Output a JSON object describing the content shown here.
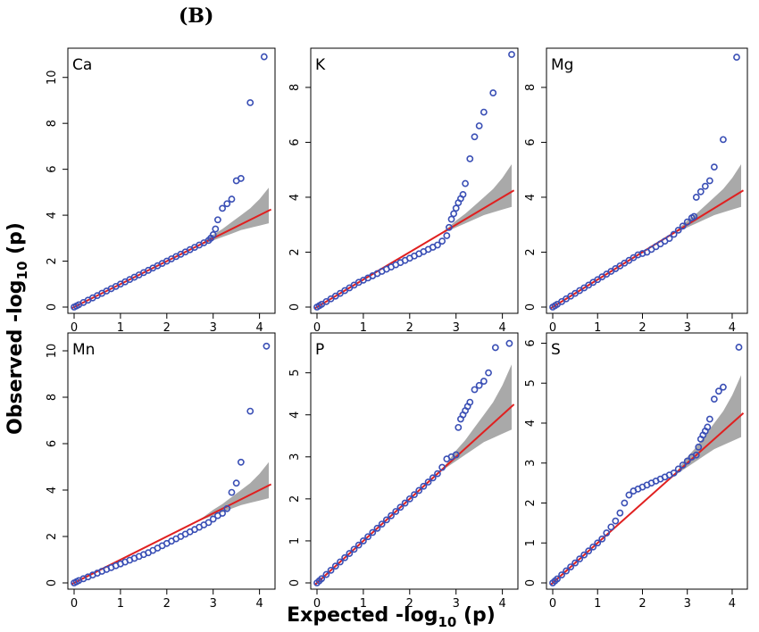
{
  "figure": {
    "panel_label": "(B)",
    "xlabel_main": "Expected -log",
    "xlabel_sub": "10",
    "xlabel_tail": " (p)",
    "ylabel_main": "Observed -log",
    "ylabel_sub": "10",
    "ylabel_tail": " (p)"
  },
  "colors": {
    "points": "#3a4fb5",
    "reference_line": "#e02020",
    "confidence_band": "#a9a9a9",
    "frame": "#000000"
  },
  "chart_data": [
    {
      "type": "scatter",
      "title": "Ca",
      "xlim": [
        0,
        4.2
      ],
      "ylim": [
        0,
        11
      ],
      "xticks": [
        0,
        1,
        2,
        3,
        4
      ],
      "yticks": [
        0,
        2,
        4,
        6,
        8,
        10
      ],
      "reference_line": {
        "x": [
          -0.05,
          4.25
        ],
        "y": [
          -0.05,
          4.25
        ]
      },
      "confidence_band": {
        "x": [
          2.6,
          2.8,
          3.0,
          3.2,
          3.4,
          3.6,
          3.8,
          4.0,
          4.2
        ],
        "lower": [
          2.6,
          2.75,
          2.9,
          3.05,
          3.2,
          3.35,
          3.45,
          3.55,
          3.65
        ],
        "upper": [
          2.6,
          2.85,
          3.15,
          3.4,
          3.7,
          4.0,
          4.3,
          4.7,
          5.2
        ]
      },
      "points": {
        "x": [
          0.0,
          0.05,
          0.1,
          0.2,
          0.3,
          0.4,
          0.5,
          0.6,
          0.7,
          0.8,
          0.9,
          1.0,
          1.1,
          1.2,
          1.3,
          1.4,
          1.5,
          1.6,
          1.7,
          1.8,
          1.9,
          2.0,
          2.1,
          2.2,
          2.3,
          2.4,
          2.5,
          2.6,
          2.7,
          2.8,
          2.9,
          2.95,
          3.0,
          3.05,
          3.1,
          3.2,
          3.3,
          3.4,
          3.5,
          3.6,
          3.8,
          4.1
        ],
        "y": [
          0.0,
          0.05,
          0.1,
          0.2,
          0.3,
          0.4,
          0.5,
          0.6,
          0.7,
          0.8,
          0.9,
          1.0,
          1.1,
          1.2,
          1.3,
          1.4,
          1.5,
          1.6,
          1.7,
          1.8,
          1.9,
          2.0,
          2.1,
          2.2,
          2.3,
          2.4,
          2.5,
          2.6,
          2.7,
          2.8,
          2.9,
          3.0,
          3.15,
          3.4,
          3.8,
          4.3,
          4.5,
          4.7,
          5.5,
          5.6,
          8.9,
          10.9
        ]
      }
    },
    {
      "type": "scatter",
      "title": "K",
      "xlim": [
        0,
        4.2
      ],
      "ylim": [
        0,
        9.2
      ],
      "xticks": [
        0,
        1,
        2,
        3,
        4
      ],
      "yticks": [
        0,
        2,
        4,
        6,
        8
      ],
      "reference_line": {
        "x": [
          -0.05,
          4.25
        ],
        "y": [
          -0.05,
          4.25
        ]
      },
      "confidence_band": {
        "x": [
          2.6,
          2.8,
          3.0,
          3.2,
          3.4,
          3.6,
          3.8,
          4.0,
          4.2
        ],
        "lower": [
          2.6,
          2.75,
          2.9,
          3.05,
          3.2,
          3.35,
          3.45,
          3.55,
          3.65
        ],
        "upper": [
          2.6,
          2.85,
          3.15,
          3.4,
          3.7,
          4.0,
          4.3,
          4.7,
          5.2
        ]
      },
      "points": {
        "x": [
          0.0,
          0.05,
          0.1,
          0.2,
          0.3,
          0.4,
          0.5,
          0.6,
          0.7,
          0.8,
          0.9,
          1.0,
          1.1,
          1.2,
          1.3,
          1.4,
          1.5,
          1.6,
          1.7,
          1.8,
          1.9,
          2.0,
          2.1,
          2.2,
          2.3,
          2.4,
          2.5,
          2.6,
          2.7,
          2.8,
          2.85,
          2.9,
          2.95,
          3.0,
          3.05,
          3.1,
          3.15,
          3.2,
          3.3,
          3.4,
          3.5,
          3.6,
          3.8,
          4.2
        ],
        "y": [
          0.0,
          0.05,
          0.1,
          0.2,
          0.3,
          0.4,
          0.5,
          0.6,
          0.7,
          0.8,
          0.9,
          0.98,
          1.06,
          1.14,
          1.22,
          1.3,
          1.38,
          1.46,
          1.54,
          1.62,
          1.7,
          1.78,
          1.86,
          1.94,
          2.02,
          2.1,
          2.18,
          2.26,
          2.4,
          2.6,
          2.9,
          3.2,
          3.4,
          3.6,
          3.8,
          3.95,
          4.1,
          4.5,
          5.4,
          6.2,
          6.6,
          7.1,
          7.8,
          9.2
        ]
      }
    },
    {
      "type": "scatter",
      "title": "Mg",
      "xlim": [
        0,
        4.2
      ],
      "ylim": [
        0,
        9.2
      ],
      "xticks": [
        0,
        1,
        2,
        3,
        4
      ],
      "yticks": [
        0,
        2,
        4,
        6,
        8
      ],
      "reference_line": {
        "x": [
          -0.05,
          4.25
        ],
        "y": [
          -0.05,
          4.25
        ]
      },
      "confidence_band": {
        "x": [
          2.6,
          2.8,
          3.0,
          3.2,
          3.4,
          3.6,
          3.8,
          4.0,
          4.2
        ],
        "lower": [
          2.6,
          2.75,
          2.9,
          3.05,
          3.2,
          3.35,
          3.45,
          3.55,
          3.65
        ],
        "upper": [
          2.6,
          2.85,
          3.15,
          3.4,
          3.7,
          4.0,
          4.3,
          4.7,
          5.2
        ]
      },
      "points": {
        "x": [
          0.0,
          0.05,
          0.1,
          0.2,
          0.3,
          0.4,
          0.5,
          0.6,
          0.7,
          0.8,
          0.9,
          1.0,
          1.1,
          1.2,
          1.3,
          1.4,
          1.5,
          1.6,
          1.7,
          1.8,
          1.9,
          2.0,
          2.1,
          2.2,
          2.3,
          2.4,
          2.5,
          2.6,
          2.7,
          2.8,
          2.9,
          3.0,
          3.1,
          3.15,
          3.2,
          3.3,
          3.4,
          3.5,
          3.6,
          3.8,
          4.1
        ],
        "y": [
          0.0,
          0.05,
          0.1,
          0.2,
          0.3,
          0.4,
          0.5,
          0.6,
          0.7,
          0.8,
          0.9,
          1.0,
          1.1,
          1.2,
          1.3,
          1.4,
          1.5,
          1.6,
          1.7,
          1.8,
          1.9,
          1.95,
          2.0,
          2.1,
          2.2,
          2.3,
          2.4,
          2.5,
          2.65,
          2.8,
          2.95,
          3.1,
          3.25,
          3.3,
          4.0,
          4.2,
          4.4,
          4.6,
          5.1,
          6.1,
          9.1
        ]
      }
    },
    {
      "type": "scatter",
      "title": "Mn",
      "xlim": [
        0,
        4.2
      ],
      "ylim": [
        0,
        10.5
      ],
      "xticks": [
        0,
        1,
        2,
        3,
        4
      ],
      "yticks": [
        0,
        2,
        4,
        6,
        8,
        10
      ],
      "reference_line": {
        "x": [
          -0.05,
          4.25
        ],
        "y": [
          -0.05,
          4.25
        ]
      },
      "confidence_band": {
        "x": [
          2.6,
          2.8,
          3.0,
          3.2,
          3.4,
          3.6,
          3.8,
          4.0,
          4.2
        ],
        "lower": [
          2.6,
          2.75,
          2.9,
          3.05,
          3.2,
          3.35,
          3.45,
          3.55,
          3.65
        ],
        "upper": [
          2.6,
          2.85,
          3.15,
          3.4,
          3.7,
          4.0,
          4.3,
          4.7,
          5.2
        ]
      },
      "points": {
        "x": [
          0.0,
          0.05,
          0.1,
          0.2,
          0.3,
          0.4,
          0.5,
          0.6,
          0.7,
          0.8,
          0.9,
          1.0,
          1.1,
          1.2,
          1.3,
          1.4,
          1.5,
          1.6,
          1.7,
          1.8,
          1.9,
          2.0,
          2.1,
          2.2,
          2.3,
          2.4,
          2.5,
          2.6,
          2.7,
          2.8,
          2.9,
          3.0,
          3.1,
          3.2,
          3.3,
          3.4,
          3.5,
          3.6,
          3.8,
          4.15
        ],
        "y": [
          0.0,
          0.05,
          0.1,
          0.18,
          0.26,
          0.34,
          0.42,
          0.5,
          0.58,
          0.66,
          0.74,
          0.82,
          0.9,
          0.98,
          1.06,
          1.14,
          1.22,
          1.3,
          1.4,
          1.5,
          1.6,
          1.7,
          1.8,
          1.9,
          2.0,
          2.1,
          2.2,
          2.3,
          2.4,
          2.5,
          2.6,
          2.75,
          2.9,
          3.0,
          3.2,
          3.9,
          4.3,
          5.2,
          7.4,
          10.2
        ]
      }
    },
    {
      "type": "scatter",
      "title": "P",
      "xlim": [
        0,
        4.2
      ],
      "ylim": [
        0,
        5.8
      ],
      "xticks": [
        0,
        1,
        2,
        3,
        4
      ],
      "yticks": [
        0,
        1,
        2,
        3,
        4,
        5
      ],
      "reference_line": {
        "x": [
          -0.05,
          4.25
        ],
        "y": [
          -0.05,
          4.25
        ]
      },
      "confidence_band": {
        "x": [
          2.6,
          2.8,
          3.0,
          3.2,
          3.4,
          3.6,
          3.8,
          4.0,
          4.2
        ],
        "lower": [
          2.6,
          2.75,
          2.9,
          3.05,
          3.2,
          3.35,
          3.45,
          3.55,
          3.65
        ],
        "upper": [
          2.6,
          2.85,
          3.15,
          3.4,
          3.7,
          4.0,
          4.3,
          4.7,
          5.2
        ]
      },
      "points": {
        "x": [
          0.0,
          0.05,
          0.1,
          0.2,
          0.3,
          0.4,
          0.5,
          0.6,
          0.7,
          0.8,
          0.9,
          1.0,
          1.1,
          1.2,
          1.3,
          1.4,
          1.5,
          1.6,
          1.7,
          1.8,
          1.9,
          2.0,
          2.1,
          2.2,
          2.3,
          2.4,
          2.5,
          2.6,
          2.7,
          2.8,
          2.9,
          3.0,
          3.05,
          3.1,
          3.15,
          3.2,
          3.25,
          3.3,
          3.4,
          3.5,
          3.6,
          3.7,
          3.85,
          4.15
        ],
        "y": [
          0.0,
          0.05,
          0.1,
          0.2,
          0.3,
          0.4,
          0.5,
          0.6,
          0.7,
          0.8,
          0.9,
          1.0,
          1.1,
          1.2,
          1.3,
          1.4,
          1.5,
          1.6,
          1.7,
          1.8,
          1.9,
          2.0,
          2.1,
          2.2,
          2.3,
          2.4,
          2.5,
          2.6,
          2.75,
          2.95,
          3.0,
          3.05,
          3.7,
          3.9,
          4.0,
          4.1,
          4.2,
          4.3,
          4.6,
          4.7,
          4.8,
          5.0,
          5.6,
          5.7
        ]
      }
    },
    {
      "type": "scatter",
      "title": "S",
      "xlim": [
        0,
        4.2
      ],
      "ylim": [
        0,
        6.1
      ],
      "xticks": [
        0,
        1,
        2,
        3,
        4
      ],
      "yticks": [
        0,
        1,
        2,
        3,
        4,
        5,
        6
      ],
      "reference_line": {
        "x": [
          -0.05,
          4.25
        ],
        "y": [
          -0.05,
          4.25
        ]
      },
      "confidence_band": {
        "x": [
          2.6,
          2.8,
          3.0,
          3.2,
          3.4,
          3.6,
          3.8,
          4.0,
          4.2
        ],
        "lower": [
          2.6,
          2.75,
          2.9,
          3.05,
          3.2,
          3.35,
          3.45,
          3.55,
          3.65
        ],
        "upper": [
          2.6,
          2.85,
          3.15,
          3.4,
          3.7,
          4.0,
          4.3,
          4.7,
          5.2
        ]
      },
      "points": {
        "x": [
          0.0,
          0.05,
          0.1,
          0.2,
          0.3,
          0.4,
          0.5,
          0.6,
          0.7,
          0.8,
          0.9,
          1.0,
          1.1,
          1.2,
          1.3,
          1.4,
          1.5,
          1.6,
          1.7,
          1.8,
          1.9,
          2.0,
          2.1,
          2.2,
          2.3,
          2.4,
          2.5,
          2.6,
          2.7,
          2.8,
          2.9,
          3.0,
          3.1,
          3.2,
          3.25,
          3.3,
          3.35,
          3.4,
          3.45,
          3.5,
          3.6,
          3.7,
          3.8,
          4.15
        ],
        "y": [
          0.0,
          0.05,
          0.1,
          0.2,
          0.3,
          0.4,
          0.5,
          0.6,
          0.7,
          0.8,
          0.9,
          1.0,
          1.1,
          1.25,
          1.4,
          1.55,
          1.75,
          2.0,
          2.2,
          2.3,
          2.35,
          2.4,
          2.45,
          2.5,
          2.55,
          2.6,
          2.65,
          2.7,
          2.75,
          2.85,
          2.95,
          3.05,
          3.15,
          3.2,
          3.4,
          3.6,
          3.7,
          3.8,
          3.9,
          4.1,
          4.6,
          4.8,
          4.9,
          5.9
        ]
      }
    }
  ]
}
